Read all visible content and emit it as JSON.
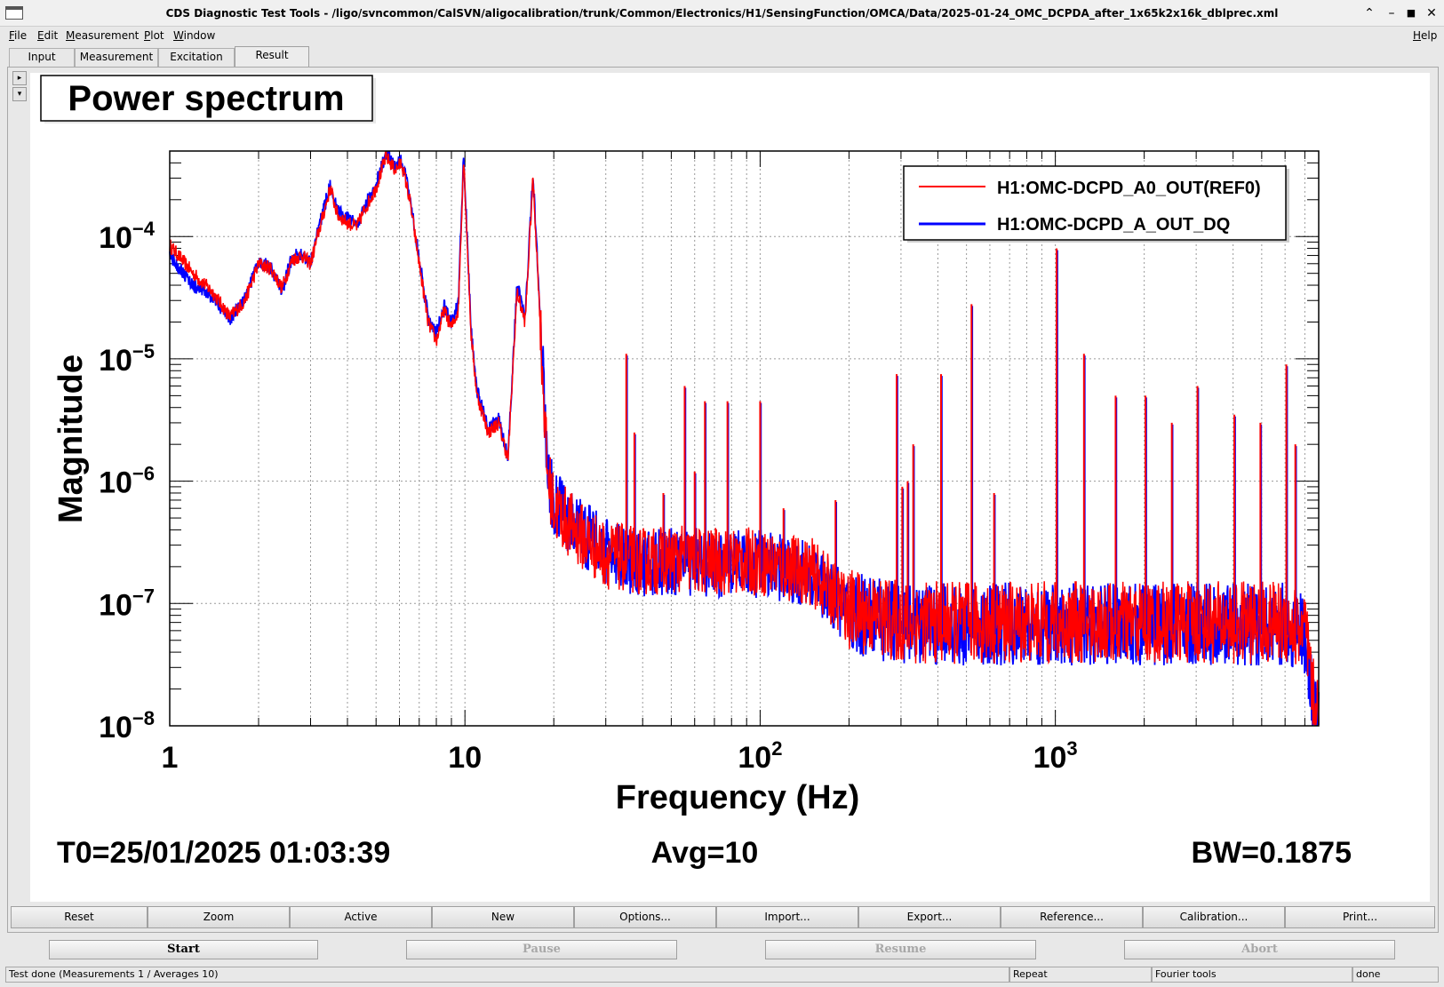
{
  "window": {
    "title": "CDS Diagnostic Test Tools - /ligo/svncommon/CalSVN/aligocalibration/trunk/Common/Electronics/H1/SensingFunction/OMCA/Data/2025-01-24_OMC_DCPDA_after_1x65k2x16k_dblprec.xml",
    "controls": [
      "⌃",
      "–",
      "■",
      "✕"
    ]
  },
  "menu": {
    "file": {
      "key": "F",
      "rest": "ile"
    },
    "edit": {
      "key": "E",
      "rest": "dit"
    },
    "measurement": {
      "key": "M",
      "rest": "easurement"
    },
    "plot": {
      "key": "P",
      "rest": "lot"
    },
    "window": {
      "key": "W",
      "rest": "indow"
    },
    "help": {
      "key": "H",
      "rest": "elp"
    }
  },
  "tabs": [
    "Input",
    "Measurement",
    "Excitation",
    "Result"
  ],
  "active_tab": "Result",
  "side_arrows": [
    "▸",
    "▾"
  ],
  "plot": {
    "title": "Power spectrum",
    "xlabel": "Frequency (Hz)",
    "ylabel": "Magnitude",
    "footer": {
      "t0": "T0=25/01/2025 01:03:39",
      "avg": "Avg=10",
      "bw": "BW=0.1875"
    }
  },
  "chart_data": {
    "type": "line",
    "title": "Power spectrum",
    "xlabel": "Frequency (Hz)",
    "ylabel": "Magnitude",
    "xscale": "log",
    "yscale": "log",
    "xlim": [
      1,
      7800
    ],
    "ylim": [
      1e-08,
      0.0005
    ],
    "grid": true,
    "legend_position": "top-right",
    "x_tick_labels": [
      {
        "value": 1,
        "base": "1",
        "exp": ""
      },
      {
        "value": 10,
        "base": "10",
        "exp": ""
      },
      {
        "value": 100,
        "base": "10",
        "exp": "2"
      },
      {
        "value": 1000,
        "base": "10",
        "exp": "3"
      }
    ],
    "y_tick_labels": [
      {
        "value": 0.0001,
        "base": "10",
        "exp": "−4"
      },
      {
        "value": 1e-05,
        "base": "10",
        "exp": "−5"
      },
      {
        "value": 1e-06,
        "base": "10",
        "exp": "−6"
      },
      {
        "value": 1e-07,
        "base": "10",
        "exp": "−7"
      },
      {
        "value": 1e-08,
        "base": "10",
        "exp": "−8"
      }
    ],
    "series": [
      {
        "name": "H1:OMC-DCPD_A0_OUT(REF0)",
        "color": "#ff0000",
        "x": [
          1,
          1.2,
          1.4,
          1.6,
          1.8,
          2.0,
          2.2,
          2.4,
          2.6,
          2.8,
          3.0,
          3.2,
          3.5,
          3.7,
          4.0,
          4.3,
          4.6,
          5.0,
          5.4,
          5.8,
          6.1,
          6.5,
          7.0,
          7.5,
          8.0,
          8.5,
          9.0,
          9.5,
          9.9,
          10.5,
          11,
          12,
          13,
          14,
          15,
          16,
          17,
          18,
          19,
          20,
          25,
          30,
          40,
          50,
          70,
          100,
          150,
          200,
          300,
          500,
          1000,
          2000,
          4000,
          6000,
          7000,
          7600
        ],
        "y": [
          8.5e-05,
          5e-05,
          3.5e-05,
          2.2e-05,
          3e-05,
          6e-05,
          5.5e-05,
          3.8e-05,
          6.5e-05,
          7e-05,
          6e-05,
          0.00011,
          0.00025,
          0.00015,
          0.00013,
          0.00012,
          0.00017,
          0.00025,
          0.00045,
          0.00035,
          0.0004,
          0.0002,
          6e-05,
          2e-05,
          1.4e-05,
          2.5e-05,
          1.8e-05,
          2.5e-05,
          0.00045,
          1.5e-05,
          5e-06,
          2.5e-06,
          3e-06,
          1.5e-06,
          3.5e-05,
          2e-05,
          0.0003,
          2e-05,
          1.2e-06,
          6e-07,
          3.5e-07,
          2.5e-07,
          2.2e-07,
          2.3e-07,
          2.2e-07,
          2.2e-07,
          1.8e-07,
          9e-08,
          7e-08,
          7e-08,
          7e-08,
          7e-08,
          7e-08,
          7e-08,
          6e-08,
          1.2e-08
        ]
      },
      {
        "name": "H1:OMC-DCPD_A_OUT_DQ",
        "color": "#0000ff",
        "x": [
          1,
          1.2,
          1.4,
          1.6,
          1.8,
          2.0,
          2.2,
          2.4,
          2.6,
          2.8,
          3.0,
          3.2,
          3.5,
          3.7,
          4.0,
          4.3,
          4.6,
          5.0,
          5.4,
          5.8,
          6.1,
          6.5,
          7.0,
          7.5,
          8.0,
          8.5,
          9.0,
          9.5,
          9.9,
          10.5,
          11,
          12,
          13,
          14,
          15,
          16,
          17,
          18,
          19,
          20,
          25,
          30,
          40,
          50,
          70,
          100,
          150,
          200,
          300,
          500,
          1000,
          2000,
          4000,
          6000,
          7000,
          7600
        ],
        "y": [
          7e-05,
          4e-05,
          3.2e-05,
          2.1e-05,
          3.2e-05,
          6.2e-05,
          5.6e-05,
          3.6e-05,
          6.8e-05,
          7.2e-05,
          6.2e-05,
          0.00012,
          0.00027,
          0.00016,
          0.00014,
          0.000125,
          0.00018,
          0.00027,
          0.00048,
          0.00038,
          0.00042,
          0.00022,
          6.5e-05,
          2.2e-05,
          1.6e-05,
          2.7e-05,
          2e-05,
          2.8e-05,
          0.00048,
          1.6e-05,
          5.5e-06,
          2.7e-06,
          3.2e-06,
          1.6e-06,
          4e-05,
          2.2e-05,
          0.00033,
          2.2e-05,
          1.3e-06,
          6.5e-07,
          3.8e-07,
          2.6e-07,
          2.1e-07,
          2.2e-07,
          2.1e-07,
          2.1e-07,
          1.7e-07,
          8.5e-08,
          6.8e-08,
          6.8e-08,
          6.8e-08,
          6.8e-08,
          6.8e-08,
          6.8e-08,
          5.8e-08,
          1.1e-08
        ]
      }
    ],
    "peaks": [
      {
        "f": 35.2,
        "a": 1.1e-05
      },
      {
        "f": 37.5,
        "a": 2.5e-06
      },
      {
        "f": 47,
        "a": 8e-07
      },
      {
        "f": 55.5,
        "a": 6e-06
      },
      {
        "f": 60,
        "a": 1.2e-06
      },
      {
        "f": 65,
        "a": 4.5e-06
      },
      {
        "f": 77.5,
        "a": 4.5e-06
      },
      {
        "f": 100,
        "a": 4.5e-06
      },
      {
        "f": 120,
        "a": 6e-07
      },
      {
        "f": 180,
        "a": 7e-07
      },
      {
        "f": 290,
        "a": 7.5e-06
      },
      {
        "f": 303,
        "a": 9e-07
      },
      {
        "f": 316,
        "a": 1e-06
      },
      {
        "f": 330,
        "a": 2e-06
      },
      {
        "f": 410,
        "a": 7.5e-06
      },
      {
        "f": 520,
        "a": 2.8e-05
      },
      {
        "f": 620,
        "a": 8e-07
      },
      {
        "f": 1010,
        "a": 8e-05
      },
      {
        "f": 1250,
        "a": 1.1e-05
      },
      {
        "f": 1600,
        "a": 5e-06
      },
      {
        "f": 2020,
        "a": 5e-06
      },
      {
        "f": 2480,
        "a": 3e-06
      },
      {
        "f": 3030,
        "a": 6e-06
      },
      {
        "f": 4040,
        "a": 3.5e-06
      },
      {
        "f": 4950,
        "a": 3e-06
      },
      {
        "f": 6060,
        "a": 9e-06
      },
      {
        "f": 6500,
        "a": 2e-06
      }
    ]
  },
  "buttons": [
    "Reset",
    "Zoom",
    "Active",
    "New",
    "Options...",
    "Import...",
    "Export...",
    "Reference...",
    "Calibration...",
    "Print..."
  ],
  "controls": {
    "start": "Start",
    "pause": "Pause",
    "resume": "Resume",
    "abort": "Abort"
  },
  "status": {
    "message": "Test done (Measurements 1 / Averages 10)",
    "repeat": "Repeat",
    "fourier": "Fourier tools",
    "state": "done"
  }
}
